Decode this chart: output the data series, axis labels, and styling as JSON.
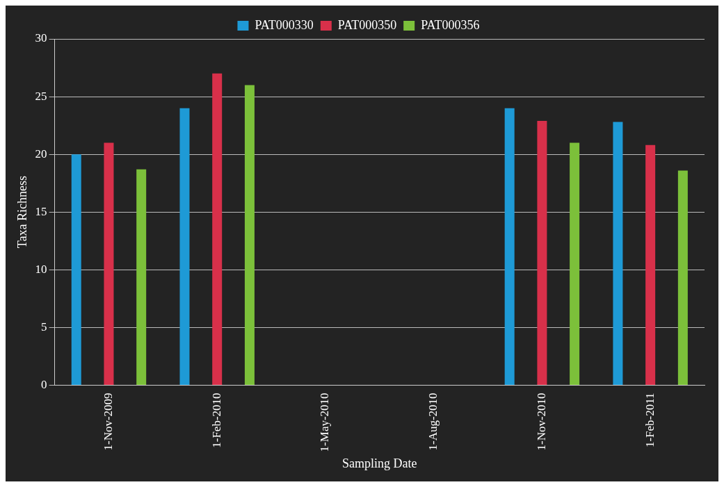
{
  "chart_data": {
    "type": "bar",
    "xlabel": "Sampling Date",
    "ylabel": "Taxa Richness",
    "categories": [
      "1-Nov-2009",
      "1-Feb-2010",
      "1-May-2010",
      "1-Aug-2010",
      "1-Nov-2010",
      "1-Feb-2011"
    ],
    "series": [
      {
        "name": "PAT000330",
        "color": "#1e9ad6",
        "values": [
          20,
          24,
          null,
          null,
          24,
          22.8
        ]
      },
      {
        "name": "PAT000350",
        "color": "#d8304a",
        "values": [
          21,
          27,
          null,
          null,
          22.9,
          20.8
        ]
      },
      {
        "name": "PAT000356",
        "color": "#7cc03a",
        "values": [
          18.7,
          26,
          null,
          null,
          21,
          18.6
        ]
      }
    ],
    "ylim": [
      0,
      30
    ],
    "yticks": [
      0,
      5,
      10,
      15,
      20,
      25,
      30
    ],
    "grid": "y",
    "legend": "top"
  }
}
